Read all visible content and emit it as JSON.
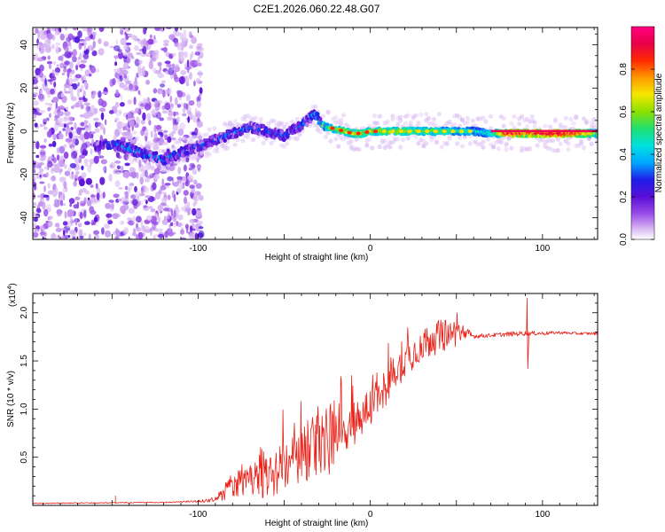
{
  "figure_title": "C2E1.2026.060.22.48.G07",
  "colors": {
    "snr_line": "#e8231a",
    "frame": "#000000",
    "colormap": [
      "#ffffff",
      "#d9b8f2",
      "#9a4ee8",
      "#5a0fd6",
      "#1e1ee8",
      "#00a6ff",
      "#00e0e0",
      "#20e070",
      "#8ae000",
      "#f5e800",
      "#ff9a00",
      "#ff2a00",
      "#e8004a",
      "#ff0080"
    ]
  },
  "chart_data": [
    {
      "type": "heatmap",
      "title": "",
      "xlabel": "Height of straight line (km)",
      "ylabel": "Frequency (Hz)",
      "xlim": [
        -196,
        132
      ],
      "ylim": [
        -50,
        48
      ],
      "xticks": [
        -100,
        0,
        100
      ],
      "xtick_labels": [
        "-100",
        "0",
        "100"
      ],
      "yticks": [
        -40,
        -20,
        0,
        20,
        40
      ],
      "ytick_labels": [
        "-40",
        "-20",
        "0",
        "20",
        "40"
      ],
      "colorbar": {
        "label": "Normalized spectral amplitude",
        "range": [
          0,
          1
        ],
        "ticks": [
          0,
          0.2,
          0.4,
          0.6,
          0.8
        ],
        "tick_labels": [
          "0.0",
          "0.2",
          "0.4",
          "0.6",
          "0.8"
        ]
      },
      "ridge": {
        "x": [
          -160,
          -150,
          -140,
          -130,
          -120,
          -110,
          -100,
          -90,
          -80,
          -70,
          -60,
          -50,
          -40,
          -32,
          -28,
          -25,
          -20,
          -15,
          -10,
          -5,
          0,
          10,
          20,
          30,
          40,
          50,
          60,
          70,
          80,
          90,
          100,
          110,
          120,
          132
        ],
        "y": [
          -7,
          -6,
          -8,
          -11,
          -13,
          -10,
          -7,
          -4,
          -1,
          2,
          0,
          -2,
          3,
          8,
          3,
          2,
          1,
          0,
          -1,
          -1,
          0,
          0,
          0,
          0,
          0,
          0,
          0,
          -1,
          -1,
          -1,
          -1,
          -1,
          -1,
          -1
        ],
        "amplitude": [
          0.25,
          0.32,
          0.34,
          0.34,
          0.34,
          0.34,
          0.3,
          0.3,
          0.3,
          0.33,
          0.3,
          0.3,
          0.33,
          0.35,
          0.55,
          0.6,
          0.65,
          0.7,
          0.72,
          0.72,
          0.7,
          0.7,
          0.68,
          0.66,
          0.62,
          0.55,
          0.52,
          0.5,
          0.96,
          0.9,
          0.96,
          0.96,
          0.9,
          0.65
        ],
        "spread": [
          4,
          4,
          4,
          4,
          4,
          4,
          4,
          4,
          4,
          4,
          4,
          4,
          4,
          4,
          3,
          3,
          3,
          3,
          3,
          3,
          3,
          3,
          3,
          3,
          3,
          3,
          3,
          3,
          3,
          3,
          3,
          3,
          3,
          3
        ]
      },
      "noise_region_x": [
        -196,
        -98
      ]
    },
    {
      "type": "line",
      "title": "",
      "xlabel": "Height of straight line (km)",
      "ylabel": "SNR (10 * v/v)",
      "y_multiplier_label": "(x10",
      "y_multiplier_exponent": "4",
      "xlim": [
        -196,
        132
      ],
      "ylim": [
        0,
        2.2
      ],
      "xticks": [
        -100,
        0,
        100
      ],
      "xtick_labels": [
        "-100",
        "0",
        "100"
      ],
      "yticks": [
        0.5,
        1.0,
        1.5,
        2.0
      ],
      "ytick_labels": [
        "0.5",
        "1.0",
        "1.5",
        "2.0"
      ],
      "series": [
        {
          "name": "SNR",
          "envelope": {
            "x": [
              -196,
              -120,
              -100,
              -90,
              -85,
              -80,
              -70,
              -60,
              -50,
              -40,
              -30,
              -25,
              -20,
              -10,
              0,
              10,
              20,
              30,
              40,
              50,
              60,
              70,
              80,
              90,
              100,
              110,
              120,
              132
            ],
            "base": [
              0.02,
              0.03,
              0.04,
              0.05,
              0.1,
              0.18,
              0.2,
              0.22,
              0.3,
              0.4,
              0.55,
              0.5,
              0.65,
              0.78,
              0.95,
              1.2,
              1.45,
              1.62,
              1.7,
              1.75,
              1.75,
              1.76,
              1.77,
              1.78,
              1.78,
              1.79,
              1.78,
              1.78
            ],
            "amplitude": [
              0.01,
              0.01,
              0.02,
              0.06,
              0.2,
              0.25,
              0.3,
              0.45,
              0.55,
              0.6,
              0.7,
              0.85,
              0.55,
              0.5,
              0.45,
              0.4,
              0.35,
              0.35,
              0.35,
              0.3,
              0.05,
              0.04,
              0.05,
              0.05,
              0.04,
              0.03,
              0.03,
              0.03
            ]
          },
          "features": [
            {
              "x": -148,
              "value": 0.1
            },
            {
              "x": 91,
              "value": 2.15
            },
            {
              "x": 91.5,
              "value": 1.42
            }
          ]
        }
      ]
    }
  ]
}
